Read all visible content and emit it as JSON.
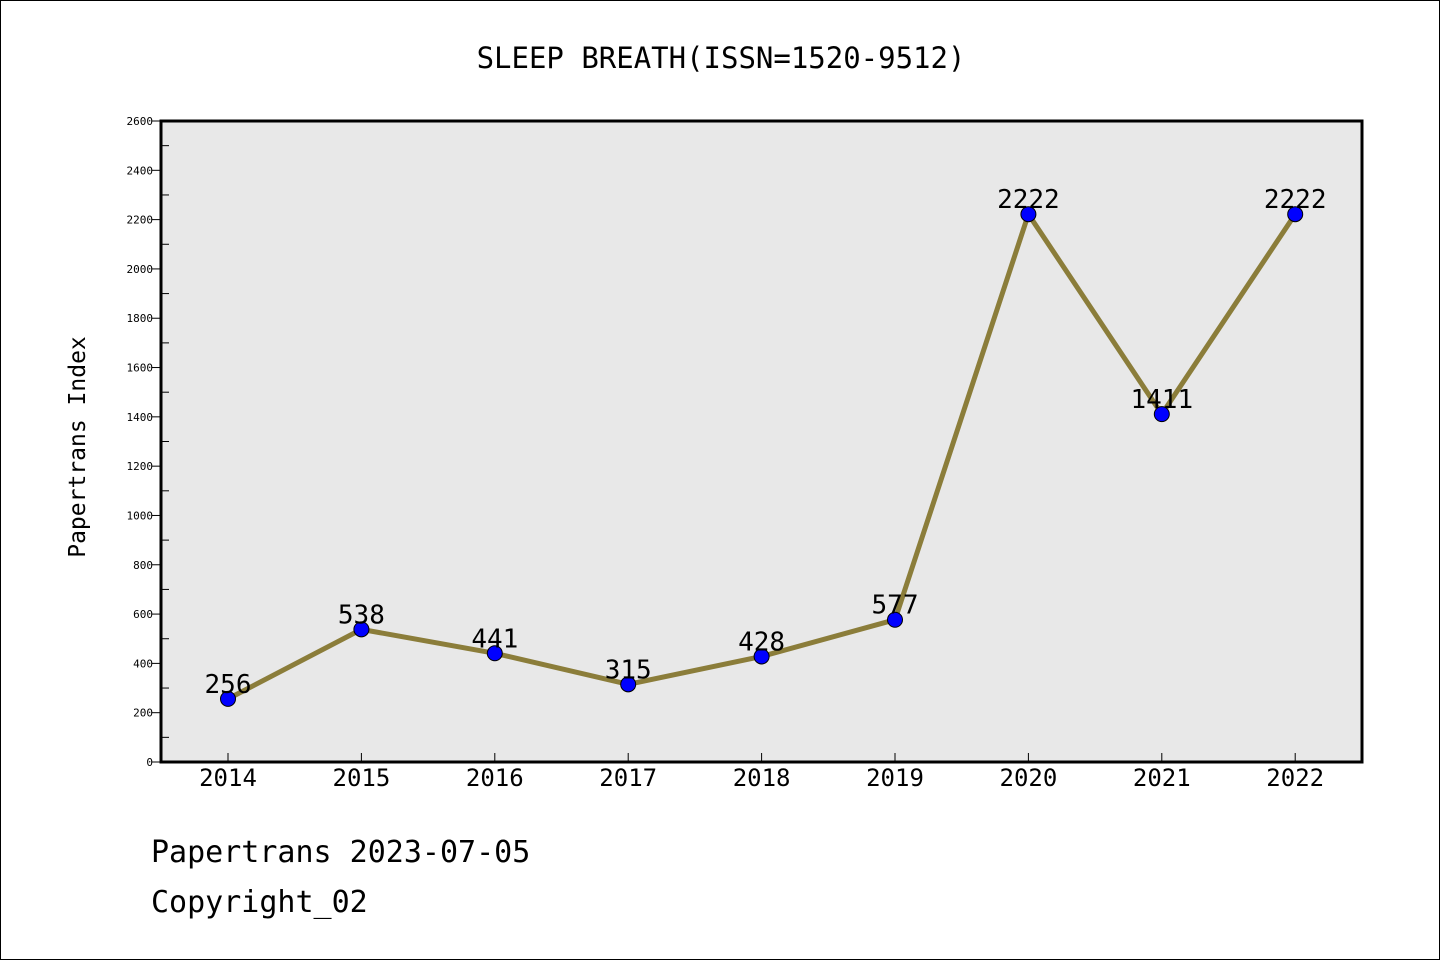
{
  "chart_data": {
    "type": "line",
    "title": "SLEEP BREATH(ISSN=1520-9512)",
    "xlabel": "",
    "ylabel": "Papertrans Index",
    "categories": [
      "2014",
      "2015",
      "2016",
      "2017",
      "2018",
      "2019",
      "2020",
      "2021",
      "2022"
    ],
    "series": [
      {
        "values": [
          256,
          538,
          441,
          315,
          428,
          577,
          2222,
          1411,
          2222
        ]
      }
    ],
    "ylim": [
      0,
      2600
    ],
    "yticks": [
      0,
      200,
      400,
      600,
      800,
      1000,
      1200,
      1400,
      1600,
      1800,
      2000,
      2200,
      2400,
      2600
    ],
    "grid": false,
    "legend": "none",
    "line_color": "#8b7d3a",
    "marker_color": "#0000ff",
    "plot_background": "#e8e8e8"
  },
  "footer": {
    "line1": "Papertrans 2023-07-05",
    "line2": "Copyright_02"
  }
}
